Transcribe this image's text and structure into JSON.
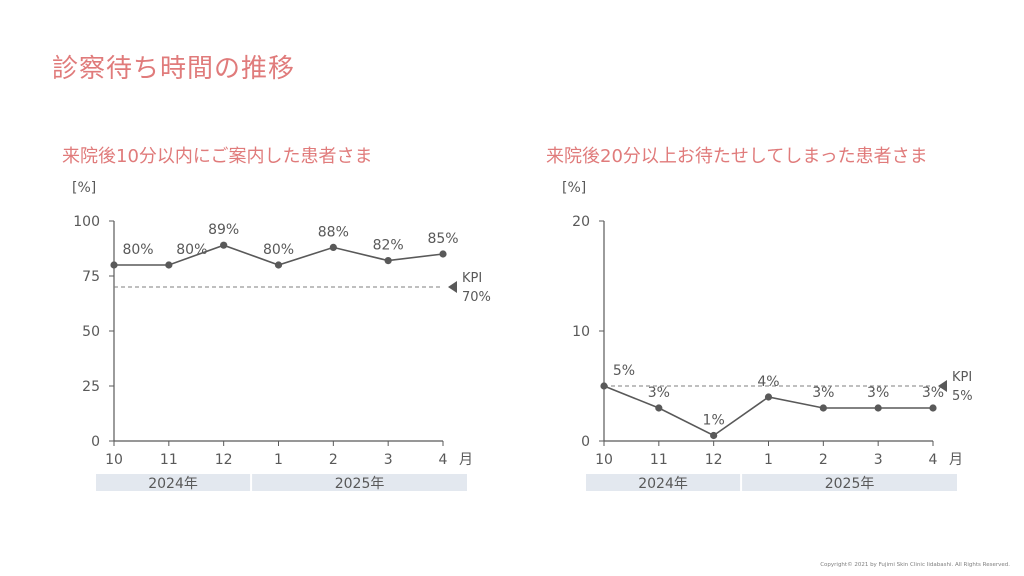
{
  "page": {
    "title": "診察待ち時間の推移",
    "copyright": "Copyright© 2021 by Fujimi Skin Clinic Iidabashi. All Rights Reserved."
  },
  "colors": {
    "title": "#e07b7b",
    "line": "#595959",
    "axis": "#595959",
    "kpi_line": "#7f7f7f",
    "year_band": "#e3e8ef"
  },
  "chart_data": [
    {
      "type": "line",
      "title": "来院後10分以内にご案内した患者さま",
      "ylabel": "[%]",
      "xunit": "月",
      "categories": [
        "10",
        "11",
        "12",
        "1",
        "2",
        "3",
        "4"
      ],
      "values": [
        80,
        80,
        89,
        80,
        88,
        82,
        85
      ],
      "data_labels": [
        "80%",
        "80%",
        "89%",
        "80%",
        "88%",
        "82%",
        "85%"
      ],
      "ylim": [
        0,
        100
      ],
      "yticks": [
        "0",
        "25",
        "50",
        "75",
        "100"
      ],
      "kpi": {
        "label": "KPI",
        "value": 70,
        "value_label": "70%"
      },
      "years": [
        {
          "label": "2024年",
          "months": [
            "10",
            "11",
            "12"
          ]
        },
        {
          "label": "2025年",
          "months": [
            "1",
            "2",
            "3",
            "4"
          ]
        }
      ],
      "grid": false
    },
    {
      "type": "line",
      "title": "来院後20分以上お待たせしてしまった患者さま",
      "ylabel": "[%]",
      "xunit": "月",
      "categories": [
        "10",
        "11",
        "12",
        "1",
        "2",
        "3",
        "4"
      ],
      "values": [
        5,
        3,
        0.5,
        4,
        3,
        3,
        3
      ],
      "data_labels": [
        "5%",
        "3%",
        "1%",
        "4%",
        "3%",
        "3%",
        "3%"
      ],
      "ylim": [
        0,
        20
      ],
      "yticks": [
        "0",
        "10",
        "20"
      ],
      "kpi": {
        "label": "KPI",
        "value": 5,
        "value_label": "5%"
      },
      "years": [
        {
          "label": "2024年",
          "months": [
            "10",
            "11",
            "12"
          ]
        },
        {
          "label": "2025年",
          "months": [
            "1",
            "2",
            "3",
            "4"
          ]
        }
      ],
      "grid": false
    }
  ]
}
